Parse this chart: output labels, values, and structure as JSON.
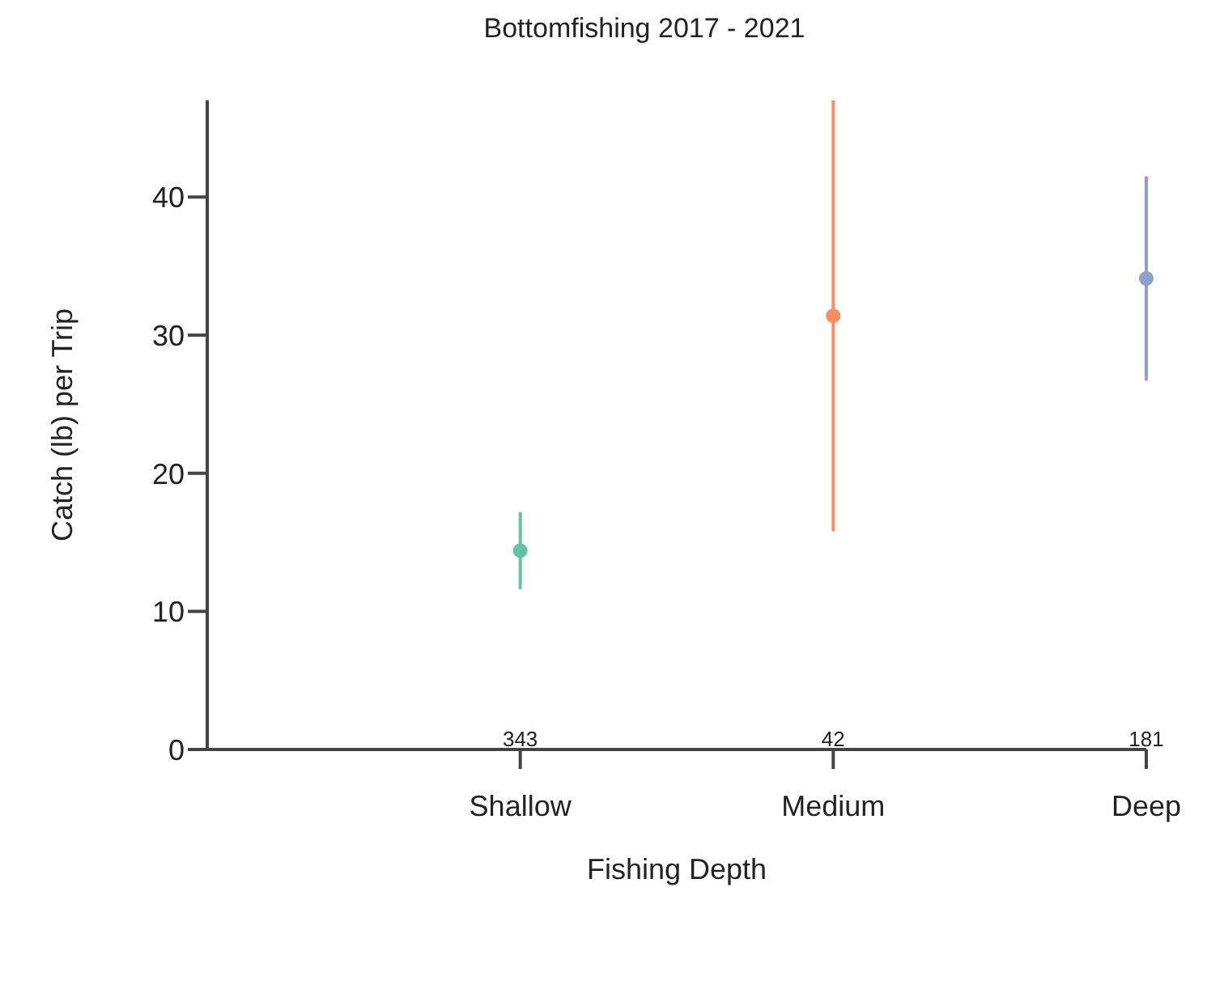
{
  "chart_data": {
    "type": "scatter",
    "title": "Bottomfishing 2017 - 2021",
    "xlabel": "Fishing Depth",
    "ylabel": "Catch (lb) per Trip",
    "categories": [
      "Shallow",
      "Medium",
      "Deep"
    ],
    "values": [
      14.4,
      31.4,
      34.1
    ],
    "colors": [
      "#66c2a5",
      "#fc8d62",
      "#8da0cb"
    ],
    "errors": [
      [
        11.6,
        17.2
      ],
      [
        15.8,
        47
      ],
      [
        26.7,
        41.5
      ]
    ],
    "ylim": [
      0,
      47
    ],
    "yticks": [
      0,
      10,
      20,
      30,
      40
    ],
    "grid": false,
    "marker": "circle",
    "annotations": [
      "343",
      "42",
      "181"
    ]
  }
}
